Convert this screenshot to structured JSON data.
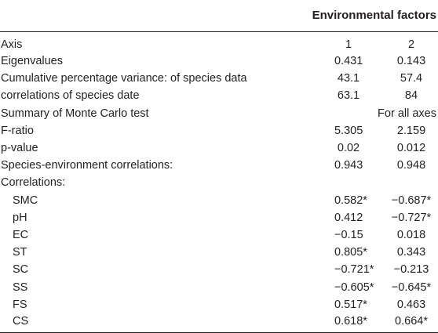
{
  "table": {
    "group_header": "Environmental factors",
    "rows": [
      {
        "label": "Axis",
        "v1": "1",
        "v2": "2",
        "indent": false
      },
      {
        "label": "Eigenvalues",
        "v1": "0.431",
        "v2": "0.143",
        "indent": false
      },
      {
        "label": "Cumulative percentage variance: of species data",
        "v1": "43.1",
        "v2": "57.4",
        "indent": false
      },
      {
        "label": "correlations of species date",
        "v1": "63.1",
        "v2": "84",
        "indent": false
      },
      {
        "label": "Summary of Monte Carlo test",
        "v1": "",
        "v2": "For all axes",
        "indent": false,
        "note": true
      },
      {
        "label": "F-ratio",
        "v1": "5.305",
        "v2": "2.159",
        "indent": false
      },
      {
        "label": "p-value",
        "v1": "0.02",
        "v2": "0.012",
        "indent": false
      },
      {
        "label": "Species-environment correlations:",
        "v1": "0.943",
        "v2": "0.948",
        "indent": false
      },
      {
        "label": "Correlations:",
        "v1": "",
        "v2": "",
        "indent": false
      },
      {
        "label": "SMC",
        "v1": "0.582*",
        "v2": "−0.687*",
        "indent": true
      },
      {
        "label": "pH",
        "v1": "0.412",
        "v2": "−0.727*",
        "indent": true
      },
      {
        "label": "EC",
        "v1": "−0.15",
        "v2": "0.018",
        "indent": true
      },
      {
        "label": "ST",
        "v1": "0.805*",
        "v2": "0.343",
        "indent": true
      },
      {
        "label": "SC",
        "v1": "−0.721*",
        "v2": "−0.213",
        "indent": true
      },
      {
        "label": "SS",
        "v1": "−0.605*",
        "v2": "−0.645*",
        "indent": true
      },
      {
        "label": "FS",
        "v1": "0.517*",
        "v2": "0.463",
        "indent": true
      },
      {
        "label": "CS",
        "v1": "0.618*",
        "v2": "0.664*",
        "indent": true
      }
    ]
  }
}
